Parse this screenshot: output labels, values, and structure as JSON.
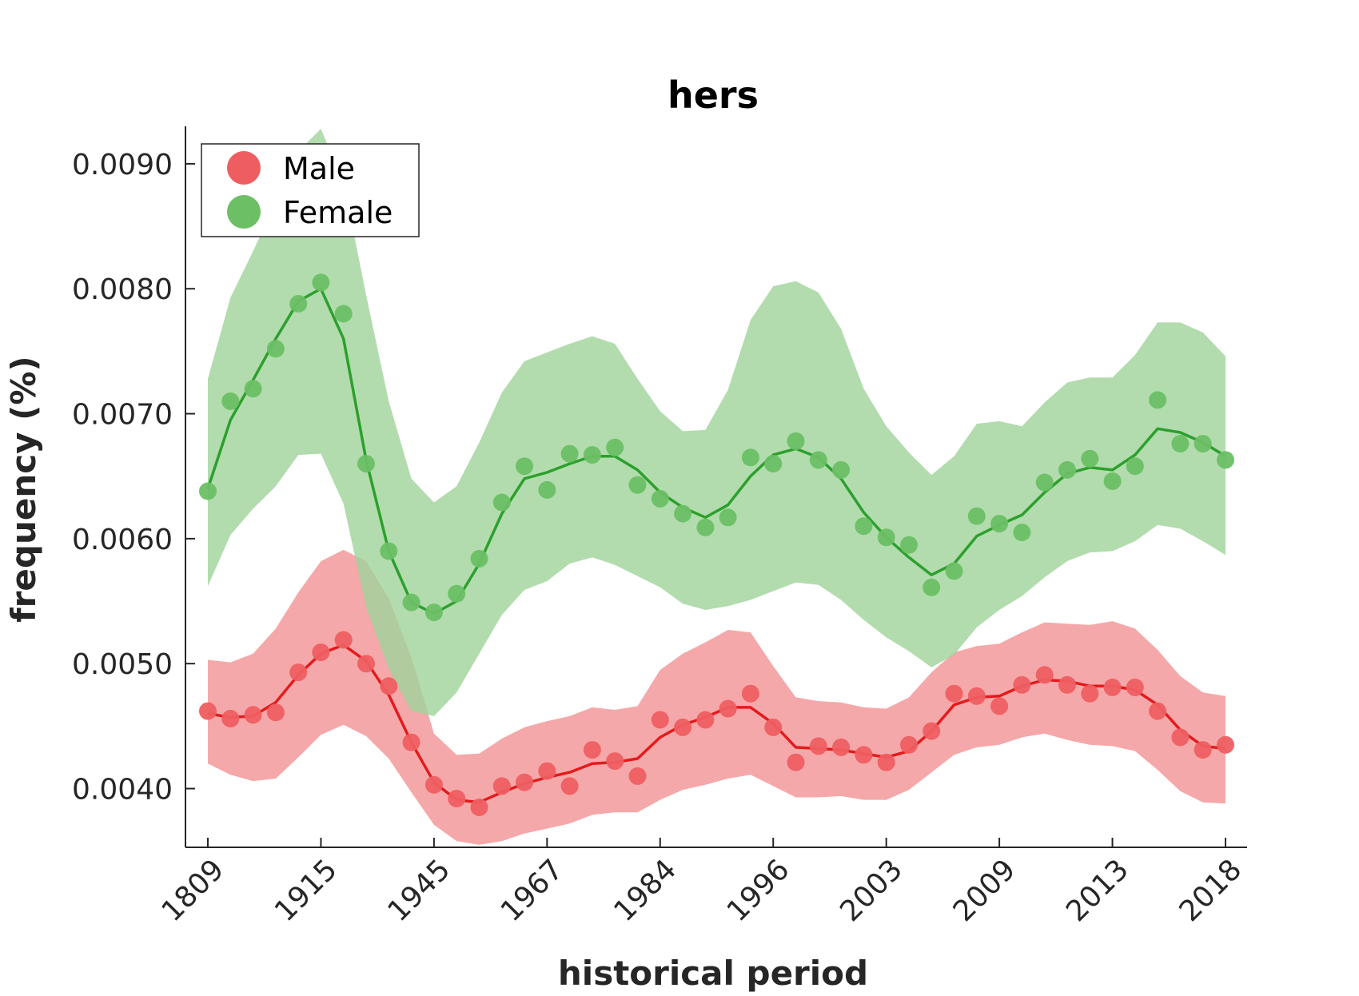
{
  "chart_data": {
    "type": "line",
    "title": "hers",
    "xlabel": "historical period",
    "ylabel": "frequency (%)",
    "ylim": [
      0.00353,
      0.0093
    ],
    "xlim": [
      -1,
      46
    ],
    "x_ticks": [
      {
        "index": 0,
        "label": "1809"
      },
      {
        "index": 5,
        "label": "1915"
      },
      {
        "index": 10,
        "label": "1945"
      },
      {
        "index": 15,
        "label": "1967"
      },
      {
        "index": 20,
        "label": "1984"
      },
      {
        "index": 25,
        "label": "1996"
      },
      {
        "index": 30,
        "label": "2003"
      },
      {
        "index": 35,
        "label": "2009"
      },
      {
        "index": 40,
        "label": "2013"
      },
      {
        "index": 45,
        "label": "2018"
      }
    ],
    "y_ticks": [
      {
        "value": 0.004,
        "label": "0.0040"
      },
      {
        "value": 0.005,
        "label": "0.0050"
      },
      {
        "value": 0.006,
        "label": "0.0060"
      },
      {
        "value": 0.007,
        "label": "0.0070"
      },
      {
        "value": 0.008,
        "label": "0.0080"
      },
      {
        "value": 0.009,
        "label": "0.0090"
      }
    ],
    "legend": {
      "placement": "top-left"
    },
    "grid": false,
    "series": [
      {
        "name": "Male",
        "color": "#e41a1c",
        "marker_color": "#ee5e61",
        "band_color": "#f4a3a4",
        "points": [
          0.00462,
          0.00456,
          0.00459,
          0.00461,
          0.00493,
          0.00509,
          0.00519,
          0.005,
          0.00482,
          0.00437,
          0.00403,
          0.00392,
          0.00385,
          0.00402,
          0.00405,
          0.00414,
          0.00402,
          0.00431,
          0.00422,
          0.0041,
          0.00455,
          0.00449,
          0.00455,
          0.00464,
          0.00476,
          0.00449,
          0.00421,
          0.00434,
          0.00433,
          0.00427,
          0.00421,
          0.00435,
          0.00446,
          0.00476,
          0.00474,
          0.00466,
          0.00483,
          0.00491,
          0.00483,
          0.00476,
          0.00481,
          0.00481,
          0.00462,
          0.00441,
          0.00431,
          0.00435
        ],
        "trend": [
          0.0046,
          0.00457,
          0.00458,
          0.00469,
          0.00491,
          0.00508,
          0.00515,
          0.00502,
          0.00475,
          0.00437,
          0.00405,
          0.00391,
          0.00389,
          0.00397,
          0.00404,
          0.00409,
          0.00413,
          0.0042,
          0.00421,
          0.00424,
          0.00441,
          0.00451,
          0.00457,
          0.00465,
          0.00465,
          0.00452,
          0.00433,
          0.00432,
          0.00431,
          0.00428,
          0.00425,
          0.0043,
          0.00446,
          0.00467,
          0.00473,
          0.00474,
          0.00482,
          0.00487,
          0.00486,
          0.00482,
          0.00482,
          0.00479,
          0.00467,
          0.00447,
          0.00434,
          0.00432
        ],
        "band_upper": [
          0.00503,
          0.00501,
          0.00508,
          0.00528,
          0.00557,
          0.00582,
          0.00591,
          0.00582,
          0.00552,
          0.00505,
          0.00444,
          0.00427,
          0.00428,
          0.0044,
          0.00449,
          0.00454,
          0.00458,
          0.00465,
          0.00463,
          0.00466,
          0.00495,
          0.00508,
          0.00517,
          0.00527,
          0.00525,
          0.00498,
          0.00473,
          0.0047,
          0.00469,
          0.00465,
          0.00464,
          0.00473,
          0.00493,
          0.00509,
          0.00514,
          0.00516,
          0.00525,
          0.00533,
          0.00532,
          0.00531,
          0.00534,
          0.00528,
          0.00511,
          0.0049,
          0.00477,
          0.00474
        ],
        "band_lower": [
          0.0042,
          0.00411,
          0.00406,
          0.00408,
          0.00425,
          0.00443,
          0.00451,
          0.00442,
          0.00424,
          0.00397,
          0.00371,
          0.00358,
          0.00355,
          0.00358,
          0.00364,
          0.00368,
          0.00372,
          0.00379,
          0.00381,
          0.00381,
          0.00391,
          0.00399,
          0.00403,
          0.00408,
          0.00411,
          0.00402,
          0.00393,
          0.00393,
          0.00394,
          0.00391,
          0.00391,
          0.00399,
          0.00413,
          0.00427,
          0.00433,
          0.00435,
          0.00441,
          0.00444,
          0.00439,
          0.00435,
          0.00434,
          0.0043,
          0.00415,
          0.00398,
          0.00389,
          0.00388
        ]
      },
      {
        "name": "Female",
        "color": "#2ca02c",
        "marker_color": "#6cbf65",
        "band_color": "#9fd39a",
        "points": [
          0.00638,
          0.0071,
          0.0072,
          0.00752,
          0.00788,
          0.00805,
          0.0078,
          0.0066,
          0.0059,
          0.00549,
          0.00541,
          0.00556,
          0.00584,
          0.00629,
          0.00658,
          0.00639,
          0.00668,
          0.00667,
          0.00673,
          0.00643,
          0.00632,
          0.0062,
          0.00609,
          0.00617,
          0.00665,
          0.0066,
          0.00678,
          0.00663,
          0.00655,
          0.0061,
          0.00601,
          0.00595,
          0.00561,
          0.00574,
          0.00618,
          0.00612,
          0.00605,
          0.00645,
          0.00655,
          0.00664,
          0.00646,
          0.00658,
          0.00711,
          0.00676,
          0.00676,
          0.00663
        ],
        "trend": [
          0.0064,
          0.00695,
          0.00727,
          0.0076,
          0.0079,
          0.008,
          0.0076,
          0.00663,
          0.0059,
          0.00549,
          0.0054,
          0.0055,
          0.0058,
          0.0062,
          0.00648,
          0.00653,
          0.0066,
          0.00666,
          0.00666,
          0.00655,
          0.00637,
          0.00625,
          0.00617,
          0.00627,
          0.0065,
          0.00667,
          0.00672,
          0.00665,
          0.00648,
          0.00621,
          0.00601,
          0.00585,
          0.00571,
          0.0058,
          0.00602,
          0.00611,
          0.00619,
          0.00637,
          0.00652,
          0.00657,
          0.00655,
          0.00667,
          0.00688,
          0.00685,
          0.00677,
          0.00666
        ],
        "band_upper": [
          0.00728,
          0.00793,
          0.0083,
          0.00869,
          0.0091,
          0.00928,
          0.00885,
          0.00795,
          0.0071,
          0.00648,
          0.00629,
          0.00642,
          0.00677,
          0.00717,
          0.00742,
          0.00749,
          0.00756,
          0.00762,
          0.00756,
          0.00728,
          0.00702,
          0.00686,
          0.00687,
          0.00719,
          0.00775,
          0.00802,
          0.00806,
          0.00797,
          0.00768,
          0.0072,
          0.0069,
          0.00669,
          0.00651,
          0.00666,
          0.00692,
          0.00694,
          0.0069,
          0.00709,
          0.00725,
          0.00729,
          0.00729,
          0.00747,
          0.00773,
          0.00773,
          0.00765,
          0.00746
        ],
        "band_lower": [
          0.00562,
          0.00603,
          0.00624,
          0.00642,
          0.00667,
          0.00668,
          0.00628,
          0.00545,
          0.00496,
          0.00462,
          0.00458,
          0.00477,
          0.00508,
          0.00539,
          0.00559,
          0.00566,
          0.0058,
          0.00585,
          0.00579,
          0.0057,
          0.00561,
          0.00548,
          0.00543,
          0.00546,
          0.00551,
          0.00558,
          0.00565,
          0.00563,
          0.00551,
          0.00535,
          0.00521,
          0.0051,
          0.00497,
          0.00507,
          0.00529,
          0.00543,
          0.00554,
          0.00569,
          0.00582,
          0.00589,
          0.0059,
          0.00598,
          0.00611,
          0.00608,
          0.00598,
          0.00587
        ]
      }
    ]
  }
}
